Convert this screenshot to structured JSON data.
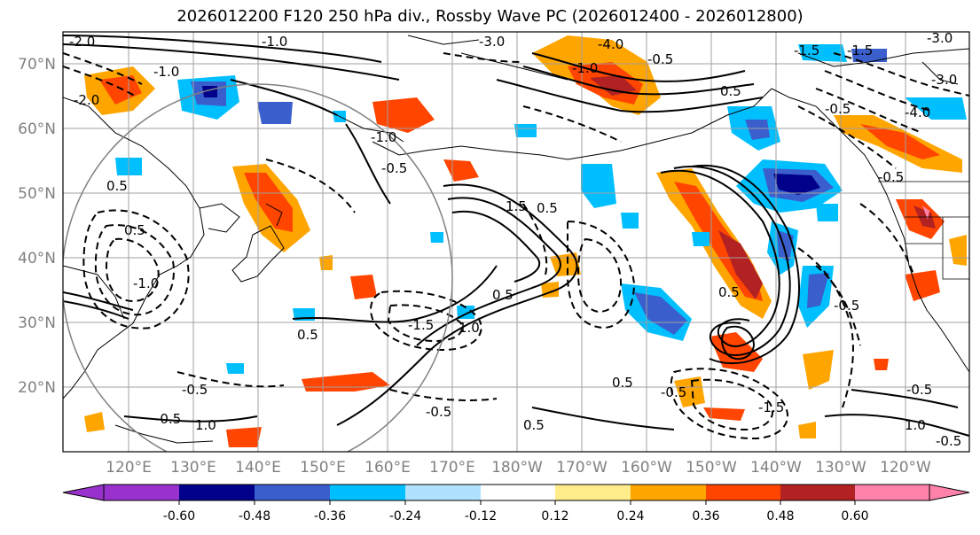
{
  "title": "2026012200 F120 250 hPa div., Rossby Wave PC (2026012400 - 2026012800)",
  "lat_labels": [
    "70°N",
    "60°N",
    "50°N",
    "40°N",
    "30°N",
    "20°N"
  ],
  "lon_labels": [
    "120°E",
    "130°E",
    "140°E",
    "150°E",
    "160°E",
    "170°E",
    "180°W",
    "170°W",
    "160°W",
    "150°W",
    "140°W",
    "130°W",
    "120°W"
  ],
  "contour_labels": [
    "-2.0",
    "-1.0",
    "-2.0",
    "-1.0",
    "-3.0",
    "-4.0",
    "-3.0",
    "-0.5",
    "-1.0",
    "-0.5",
    "-1.0",
    "-1.5",
    "-1.5",
    "0.5",
    "0.5",
    "1.0",
    "-0.5",
    "-0.5",
    "0.5",
    "-0.5",
    "-1.0",
    "1.0",
    "-0.5",
    "0.5",
    "-1.5",
    "-0.5",
    "0.5",
    "0.5",
    "-3.0",
    "-4.0",
    "1.5",
    "-1.5",
    "0.5",
    "-0.5",
    "0.5",
    "-0.5",
    "1.0",
    "-0.5",
    "-0.5",
    "0.5"
  ],
  "colorbar": {
    "ticks": [
      "-0.60",
      "-0.48",
      "-0.36",
      "-0.24",
      "-0.12",
      "0.12",
      "0.24",
      "0.36",
      "0.48",
      "0.60"
    ],
    "under_color": "#9932CC",
    "colors": [
      "#00008B",
      "#3A5FCD",
      "#00BFFF",
      "#B0E2FF",
      "#FFFFFF",
      "#FFEC8B",
      "#FFA500",
      "#FF4500",
      "#B22222"
    ],
    "over_color": "#FF82AB"
  }
}
